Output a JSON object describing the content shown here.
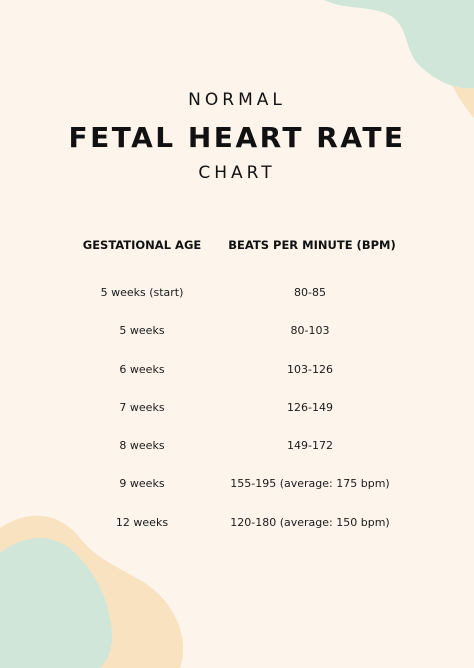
{
  "header": {
    "line1": "NORMAL",
    "line2": "FETAL HEART RATE",
    "line3": "CHART"
  },
  "table": {
    "columns": [
      "GESTATIONAL AGE",
      "BEATS PER MINUTE (BPM)"
    ],
    "rows": [
      {
        "age": "5 weeks (start)",
        "bpm": "80-85"
      },
      {
        "age": "5 weeks",
        "bpm": "80-103"
      },
      {
        "age": "6 weeks",
        "bpm": "103-126"
      },
      {
        "age": "7 weeks",
        "bpm": "126-149"
      },
      {
        "age": "8 weeks",
        "bpm": "149-172"
      },
      {
        "age": "9 weeks",
        "bpm": "155-195 (average: 175 bpm)"
      },
      {
        "age": "12 weeks",
        "bpm": "120-180 (average: 150 bpm)"
      }
    ]
  },
  "colors": {
    "background": "#fdf5ec",
    "mint": "#cfe6d9",
    "peach": "#f9e2c0",
    "text": "#111111"
  }
}
